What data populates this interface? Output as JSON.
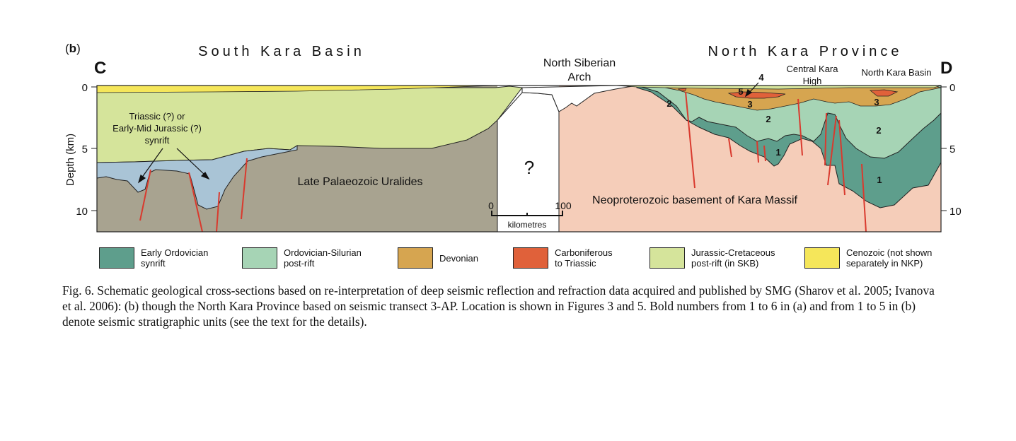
{
  "figure": {
    "panel_label_prefix": "(",
    "panel_label_letter": "b",
    "panel_label_suffix": ")",
    "left_region_title": "South Kara Basin",
    "right_region_title": "North Kara Province",
    "left_end_label": "C",
    "right_end_label": "D",
    "arch_label_line1": "North Siberian",
    "arch_label_line2": "Arch",
    "central_high_line1": "Central Kara",
    "central_high_line2": "High",
    "north_basin_label": "North Kara Basin",
    "y_axis_label": "Depth (km)",
    "depth_ticks": [
      "0",
      "5",
      "10"
    ],
    "synrift_label_line1": "Triassic (?) or",
    "synrift_label_line2": "Early-Mid Jurassic (?)",
    "synrift_label_line3": "synrift",
    "uralides_label": "Late Palaeozoic Uralides",
    "unknown_label": "?",
    "basement_label": "Neoproterozoic basement of Kara Massif",
    "scale_start": "0",
    "scale_end": "100",
    "scale_unit": "kilometres",
    "unit_numbers": {
      "u1a": "1",
      "u1b": "1",
      "u2a": "2",
      "u2b": "2",
      "u2c": "2",
      "u3a": "3",
      "u3b": "3",
      "u4": "4",
      "u5": "5"
    }
  },
  "legend": [
    {
      "label": "Early Ordovician\nsynrift",
      "color": "#5e9e8c"
    },
    {
      "label": "Ordovician-Silurian\npost-rift",
      "color": "#a6d4b5"
    },
    {
      "label": "Devonian",
      "color": "#d6a550"
    },
    {
      "label": "Carboniferous\nto Triassic",
      "color": "#e0613a"
    },
    {
      "label": "Jurassic-Cretaceous\npost-rift (in SKB)",
      "color": "#d5e49b"
    },
    {
      "label": "Cenozoic (not shown\nseparately in NKP)",
      "color": "#f5e65a"
    }
  ],
  "colors": {
    "uralides": "#a8a390",
    "basement": "#f5cdb9",
    "synrift_triassic": "#a9c4d6",
    "fault": "#d93a2e"
  },
  "caption": "Fig. 6. Schematic geological cross-sections based on re-interpretation of deep seismic reflection and refraction data acquired and published by SMG (Sharov et al. 2005; Ivanova et al. 2006): (b) though the North Kara Province based on seismic transect 3-AP. Location is shown in Figures 3 and 5. Bold numbers from 1 to 6 in (a) and from 1 to 5 in (b) denote seismic stratigraphic units (see the text for the details)."
}
